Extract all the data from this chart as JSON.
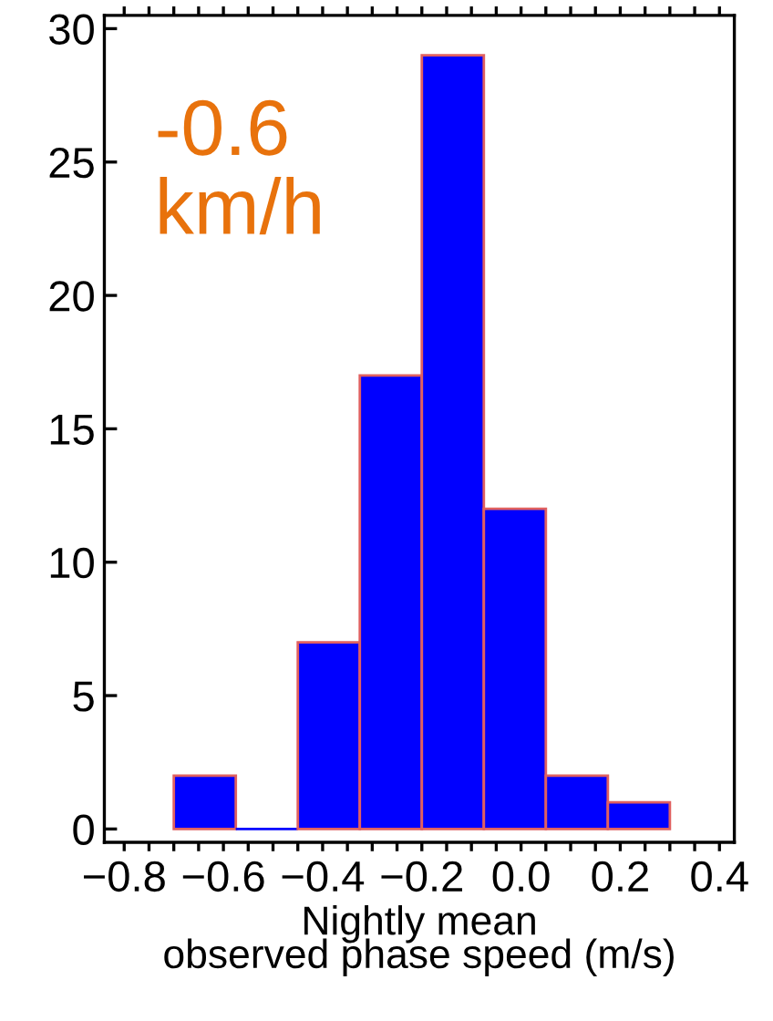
{
  "chart_data": {
    "type": "histogram",
    "xlabel": "Nightly mean\nobserved phase speed (m/s)",
    "bins": [
      -0.7,
      -0.575,
      -0.45,
      -0.325,
      -0.2,
      -0.075,
      0.05,
      0.175,
      0.3
    ],
    "values": [
      2,
      0,
      7,
      17,
      29,
      12,
      2,
      1
    ],
    "color": "#0000ff",
    "annotations": [
      "-0.6\nkm/h"
    ],
    "xlim": [
      -0.84,
      0.43
    ],
    "ylim": [
      -0.5,
      30.5
    ],
    "xticks": [
      {
        "value": -0.8,
        "label": "−0.8"
      },
      {
        "value": -0.75,
        "label": null
      },
      {
        "value": -0.7,
        "label": null
      },
      {
        "value": -0.65,
        "label": null
      },
      {
        "value": -0.6,
        "label": "−0.6"
      },
      {
        "value": -0.55,
        "label": null
      },
      {
        "value": -0.5,
        "label": null
      },
      {
        "value": -0.45,
        "label": null
      },
      {
        "value": -0.4,
        "label": "−0.4"
      },
      {
        "value": -0.35,
        "label": null
      },
      {
        "value": -0.3,
        "label": null
      },
      {
        "value": -0.25,
        "label": null
      },
      {
        "value": -0.2,
        "label": "−0.2"
      },
      {
        "value": -0.15,
        "label": null
      },
      {
        "value": -0.1,
        "label": null
      },
      {
        "value": -0.05,
        "label": null
      },
      {
        "value": 0,
        "label": "0.0"
      },
      {
        "value": 0.05,
        "label": null
      },
      {
        "value": 0.1,
        "label": null
      },
      {
        "value": 0.15,
        "label": null
      },
      {
        "value": 0.2,
        "label": "0.2"
      },
      {
        "value": 0.25,
        "label": null
      },
      {
        "value": 0.3,
        "label": null
      },
      {
        "value": 0.35,
        "label": null
      },
      {
        "value": 0.4,
        "label": "0.4"
      }
    ],
    "yticks": [
      0,
      5,
      10,
      15,
      20,
      25,
      30
    ],
    "grid": false,
    "legend": false
  }
}
